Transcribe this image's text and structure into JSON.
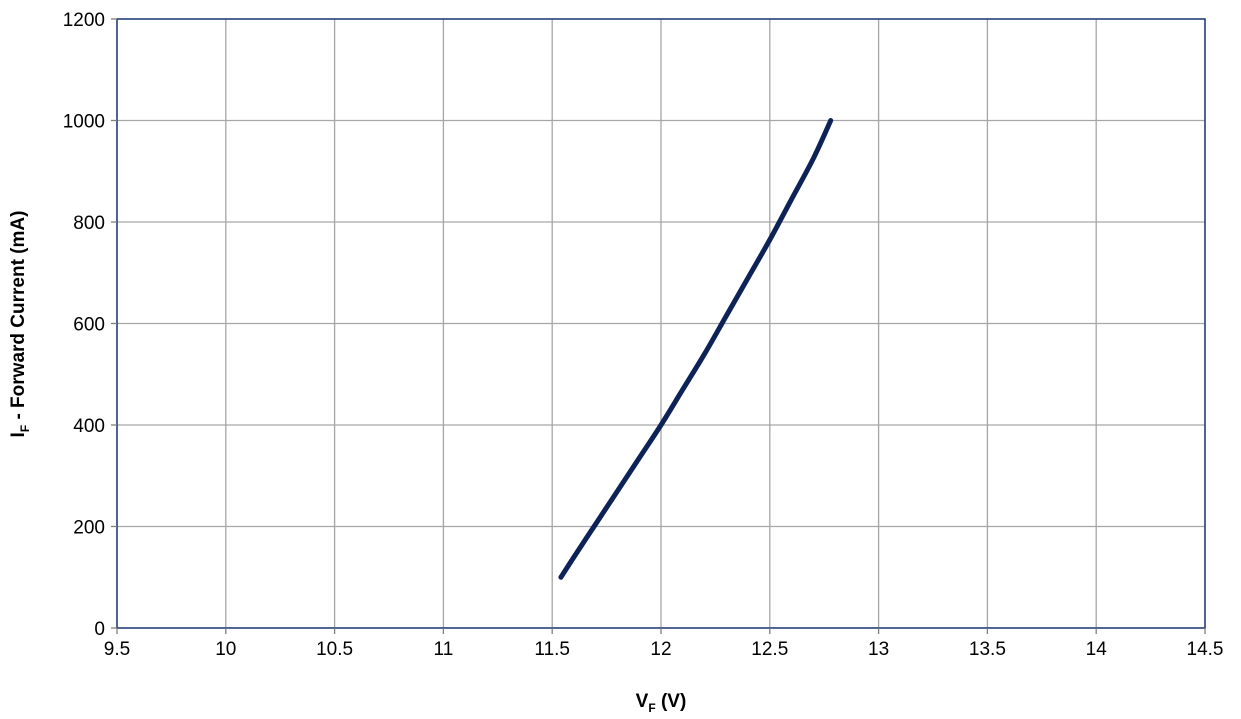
{
  "chart_data": {
    "type": "line",
    "title": "",
    "xlabel": {
      "main": "V",
      "sub": "F",
      "rest": " (V)"
    },
    "ylabel": {
      "main": "I",
      "sub": "F",
      "rest": " - Forward Current (mA)"
    },
    "xlim": [
      9.5,
      14.5
    ],
    "ylim": [
      0,
      1200
    ],
    "xticks": [
      9.5,
      10,
      10.5,
      11,
      11.5,
      12,
      12.5,
      13,
      13.5,
      14,
      14.5
    ],
    "xtick_labels": [
      "9.5",
      "10",
      "10.5",
      "11",
      "11.5",
      "12",
      "12.5",
      "13",
      "13.5",
      "14",
      "14.5"
    ],
    "yticks": [
      0,
      200,
      400,
      600,
      800,
      1000,
      1200
    ],
    "ytick_labels": [
      "0",
      "200",
      "400",
      "600",
      "800",
      "1000",
      "1200"
    ],
    "grid": true,
    "legend": "none",
    "series": [
      {
        "color": "#0d2357",
        "x": [
          11.54,
          11.6,
          11.7,
          11.8,
          11.9,
          12.0,
          12.1,
          12.2,
          12.3,
          12.4,
          12.5,
          12.6,
          12.7,
          12.78
        ],
        "y": [
          100,
          140,
          205,
          270,
          335,
          400,
          470,
          540,
          615,
          690,
          765,
          845,
          925,
          1000
        ]
      }
    ],
    "colors": {
      "grid": "#a6a6a6",
      "frame": "#1f3a78",
      "line": "#0d2357"
    }
  }
}
